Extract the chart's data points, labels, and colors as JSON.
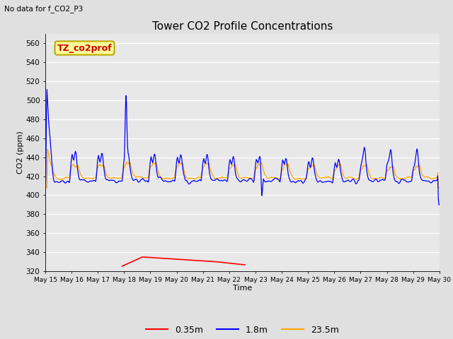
{
  "title": "Tower CO2 Profile Concentrations",
  "subtitle": "No data for f_CO2_P3",
  "xlabel": "Time",
  "ylabel": "CO2 (ppm)",
  "ylim": [
    320,
    570
  ],
  "yticks": [
    320,
    340,
    360,
    380,
    400,
    420,
    440,
    460,
    480,
    500,
    520,
    540,
    560
  ],
  "n_days": 15,
  "xtick_labels": [
    "May 15",
    "May 16",
    "May 17",
    "May 18",
    "May 19",
    "May 20",
    "May 21",
    "May 22",
    "May 23",
    "May 24",
    "May 25",
    "May 26",
    "May 27",
    "May 28",
    "May 29",
    "May 30"
  ],
  "color_035": "#ff0000",
  "color_18": "#0000ff",
  "color_235": "#ffa500",
  "legend_label_035": "0.35m",
  "legend_label_18": "1.8m",
  "legend_label_235": "23.5m",
  "bg_color": "#e0e0e0",
  "plot_bg_color": "#e8e8e8",
  "annotation_text": "TZ_co2prof",
  "annotation_bg": "#ffff99",
  "annotation_border": "#bbaa00",
  "grid_color": "#ffffff",
  "figsize": [
    6.4,
    4.8
  ],
  "dpi": 100
}
